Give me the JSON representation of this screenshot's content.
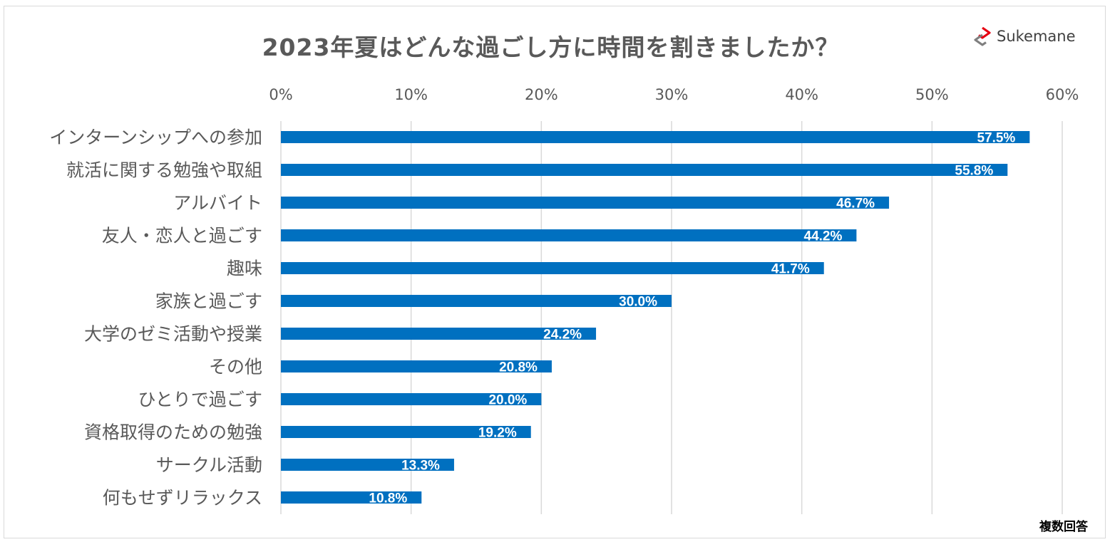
{
  "header": {
    "title": "2023年夏はどんな過ごし方に時間を割きましたか？",
    "logo_text": "Sukemane",
    "logo_icon": "sukemane-logo-icon"
  },
  "footer": {
    "note": "複数回答"
  },
  "colors": {
    "bar": "#0070C0",
    "grid": "#d9d9d9",
    "text": "#595959",
    "logo_red": "#E60012",
    "logo_gray": "#7f7f7f"
  },
  "chart_data": {
    "type": "bar",
    "orientation": "horizontal",
    "title": "2023年夏はどんな過ごし方に時間を割きましたか？",
    "xlabel": "",
    "ylabel": "",
    "xlim": [
      0,
      60
    ],
    "x_ticks": [
      0,
      10,
      20,
      30,
      40,
      50,
      60
    ],
    "x_tick_labels": [
      "0%",
      "10%",
      "20%",
      "30%",
      "40%",
      "50%",
      "60%"
    ],
    "axis_position": "top",
    "grid": true,
    "legend": "none",
    "categories": [
      "インターンシップへの参加",
      "就活に関する勉強や取組",
      "アルバイト",
      "友人・恋人と過ごす",
      "趣味",
      "家族と過ごす",
      "大学のゼミ活動や授業",
      "その他",
      "ひとりで過ごす",
      "資格取得のための勉強",
      "サークル活動",
      "何もせずリラックス"
    ],
    "values": [
      57.5,
      55.8,
      46.7,
      44.2,
      41.7,
      30.0,
      24.2,
      20.8,
      20.0,
      19.2,
      13.3,
      10.8
    ],
    "data_labels": [
      "57.5%",
      "55.8%",
      "46.7%",
      "44.2%",
      "41.7%",
      "30.0%",
      "24.2%",
      "20.8%",
      "20.0%",
      "19.2%",
      "13.3%",
      "10.8%"
    ]
  }
}
